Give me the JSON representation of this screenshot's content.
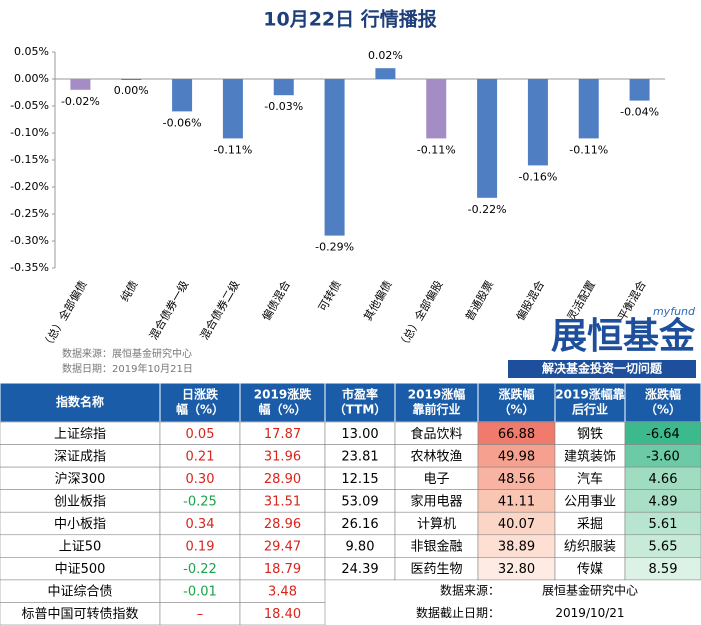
{
  "title": "10月22日 行情播报",
  "chart_data": {
    "type": "bar",
    "categories": [
      "（总）全部偏债",
      "纯债",
      "混合债券一级",
      "混合债券二级",
      "偏债混合",
      "可转债",
      "其他偏债",
      "（总）全部偏股",
      "普通股票",
      "偏股混合",
      "灵活配置",
      "平衡混合"
    ],
    "values": [
      -0.02,
      0,
      -0.06,
      -0.11,
      -0.03,
      -0.29,
      0.02,
      -0.11,
      -0.22,
      -0.16,
      -0.11,
      -0.04
    ],
    "value_labels": [
      "-0.02%",
      "0.00%",
      "-0.06%",
      "-0.11%",
      "-0.03%",
      "-0.29%",
      "0.02%",
      "-0.11%",
      "-0.22%",
      "-0.16%",
      "-0.11%",
      "-0.04%"
    ],
    "colors": [
      "#a48cc4",
      "#4f7fc2",
      "#4f7fc2",
      "#4f7fc2",
      "#4f7fc2",
      "#4f7fc2",
      "#4f7fc2",
      "#a48cc4",
      "#4f7fc2",
      "#4f7fc2",
      "#4f7fc2",
      "#4f7fc2"
    ],
    "ylim": [
      -0.35,
      0.05
    ],
    "yticks": [
      {
        "value": 0.05,
        "label": "0.05%"
      },
      {
        "value": 0,
        "label": "0.00%"
      },
      {
        "value": -0.05,
        "label": "-0.05%"
      },
      {
        "value": -0.1,
        "label": "-0.10%"
      },
      {
        "value": -0.15,
        "label": "-0.15%"
      },
      {
        "value": -0.2,
        "label": "-0.20%"
      },
      {
        "value": -0.25,
        "label": "-0.25%"
      },
      {
        "value": -0.3,
        "label": "-0.30%"
      },
      {
        "value": -0.35,
        "label": "-0.35%"
      }
    ],
    "grid": false
  },
  "notes": [
    "数据来源：展恒基金研究中心",
    "数据日期：2019年10月21日"
  ],
  "logo": {
    "tag": "myfund",
    "name": "展恒基金",
    "slogan": "解决基金投资一切问题"
  },
  "table1": {
    "header": [
      [
        "指数名称"
      ],
      [
        "日涨跌",
        "幅（%）"
      ],
      [
        "2019涨跌",
        "幅（%）"
      ],
      [
        "市盈率",
        "（TTM）"
      ]
    ],
    "rows": [
      [
        "上证综指",
        "0.05",
        "17.87",
        "13.00"
      ],
      [
        "深证成指",
        "0.21",
        "31.96",
        "23.81"
      ],
      [
        "沪深300",
        "0.30",
        "28.90",
        "12.15"
      ],
      [
        "创业板指",
        "-0.25",
        "31.51",
        "53.09"
      ],
      [
        "中小板指",
        "0.34",
        "28.96",
        "26.16"
      ],
      [
        "上证50",
        "0.19",
        "29.47",
        "9.80"
      ],
      [
        "中证500",
        "-0.22",
        "18.79",
        "24.39"
      ],
      [
        "中证综合债",
        "-0.01",
        "3.48"
      ],
      [
        "标普中国可转债指数",
        "–",
        "18.40"
      ]
    ]
  },
  "table2": {
    "header": [
      [
        "2019涨幅",
        "靠前行业"
      ],
      [
        "涨跌幅",
        "（%）"
      ],
      [
        "2019涨幅靠",
        "后行业"
      ],
      [
        "涨跌幅",
        "（%）"
      ]
    ],
    "rows": [
      [
        "食品饮料",
        "66.88",
        "钢铁",
        "-6.64"
      ],
      [
        "农林牧渔",
        "49.98",
        "建筑装饰",
        "-3.60"
      ],
      [
        "电子",
        "48.56",
        "汽车",
        "4.66"
      ],
      [
        "家用电器",
        "41.11",
        "公用事业",
        "4.89"
      ],
      [
        "计算机",
        "40.07",
        "采掘",
        "5.61"
      ],
      [
        "非银金融",
        "38.89",
        "纺织服装",
        "5.65"
      ],
      [
        "医药生物",
        "32.80",
        "传媒",
        "8.59"
      ]
    ]
  },
  "footer": [
    [
      "数据来源：",
      "展恒基金研究中心"
    ],
    [
      "数据截止日期：",
      "2019/10/21"
    ]
  ]
}
